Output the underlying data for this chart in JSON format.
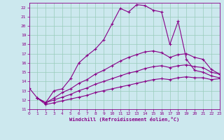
{
  "xlabel": "Windchill (Refroidissement éolien,°C)",
  "background_color": "#cce8ee",
  "grid_color": "#99ccbb",
  "line_color": "#880088",
  "xlim": [
    0,
    23
  ],
  "ylim": [
    11,
    22.5
  ],
  "xticks": [
    0,
    1,
    2,
    3,
    4,
    5,
    6,
    7,
    8,
    9,
    10,
    11,
    12,
    13,
    14,
    15,
    16,
    17,
    18,
    19,
    20,
    21,
    22,
    23
  ],
  "yticks": [
    11,
    12,
    13,
    14,
    15,
    16,
    17,
    18,
    19,
    20,
    21,
    22
  ],
  "line1_x": [
    0,
    1,
    2,
    3,
    4,
    5,
    6,
    7,
    8,
    9,
    10,
    11,
    12,
    13,
    14,
    15,
    16,
    17,
    18,
    19,
    20,
    21,
    22,
    23
  ],
  "line1_y": [
    13.3,
    12.2,
    11.7,
    13.0,
    13.2,
    14.3,
    16.0,
    16.8,
    17.5,
    18.5,
    20.2,
    21.9,
    21.5,
    22.3,
    22.2,
    21.7,
    21.5,
    18.0,
    20.5,
    16.4,
    15.2,
    15.0,
    14.6,
    14.4
  ],
  "line2_x": [
    1,
    2,
    3,
    4,
    5,
    6,
    7,
    8,
    9,
    10,
    11,
    12,
    13,
    14,
    15,
    16,
    17,
    18,
    19,
    20,
    21,
    22,
    23
  ],
  "line2_y": [
    12.2,
    11.7,
    12.2,
    12.8,
    13.2,
    13.8,
    14.2,
    14.8,
    15.2,
    15.7,
    16.2,
    16.6,
    16.9,
    17.2,
    17.3,
    17.1,
    16.6,
    16.9,
    17.0,
    16.6,
    16.4,
    15.3,
    14.8
  ],
  "line3_x": [
    1,
    2,
    3,
    4,
    5,
    6,
    7,
    8,
    9,
    10,
    11,
    12,
    13,
    14,
    15,
    16,
    17,
    18,
    19,
    20,
    21,
    22,
    23
  ],
  "line3_y": [
    12.2,
    11.7,
    12.0,
    12.3,
    12.6,
    13.0,
    13.3,
    13.7,
    14.0,
    14.3,
    14.6,
    14.9,
    15.1,
    15.4,
    15.6,
    15.7,
    15.5,
    15.7,
    15.8,
    15.6,
    15.5,
    15.0,
    14.8
  ],
  "line4_x": [
    1,
    2,
    3,
    4,
    5,
    6,
    7,
    8,
    9,
    10,
    11,
    12,
    13,
    14,
    15,
    16,
    17,
    18,
    19,
    20,
    21,
    22,
    23
  ],
  "line4_y": [
    12.2,
    11.5,
    11.7,
    11.9,
    12.1,
    12.3,
    12.5,
    12.8,
    13.0,
    13.2,
    13.4,
    13.6,
    13.8,
    14.0,
    14.2,
    14.3,
    14.2,
    14.4,
    14.5,
    14.4,
    14.4,
    14.2,
    14.3
  ]
}
